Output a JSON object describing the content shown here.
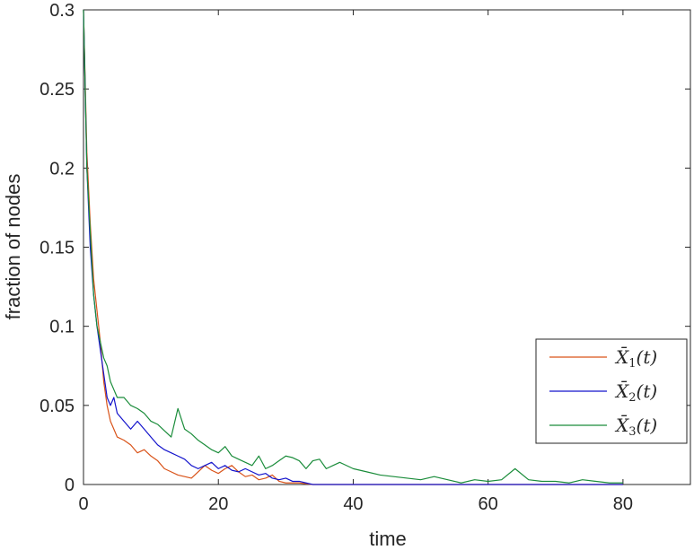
{
  "chart_data": {
    "type": "line",
    "title": "",
    "xlabel": "time",
    "ylabel": "fraction of nodes",
    "xlim": [
      0,
      90
    ],
    "ylim": [
      0,
      0.3
    ],
    "xticks": [
      0,
      20,
      40,
      60,
      80
    ],
    "xtick_labels": [
      "0",
      "20",
      "40",
      "60",
      "80"
    ],
    "yticks": [
      0,
      0.05,
      0.1,
      0.15,
      0.2,
      0.25,
      0.3
    ],
    "ytick_labels": [
      "0",
      "0.05",
      "0.1",
      "0.15",
      "0.2",
      "0.25",
      "0.3"
    ],
    "grid": false,
    "legend_position": "bottom-right",
    "series": [
      {
        "name": "X̄1(t)",
        "color": "#d95319",
        "x": [
          0,
          0.5,
          1,
          1.5,
          2,
          2.5,
          3,
          3.5,
          4,
          4.5,
          5,
          6,
          7,
          8,
          9,
          10,
          11,
          12,
          13,
          14,
          15,
          16,
          17,
          18,
          19,
          20,
          21,
          22,
          23,
          24,
          25,
          26,
          27,
          28,
          29,
          30,
          32,
          34,
          36,
          40,
          50,
          60,
          70,
          80
        ],
        "y": [
          0.3,
          0.21,
          0.165,
          0.13,
          0.11,
          0.09,
          0.065,
          0.05,
          0.04,
          0.035,
          0.03,
          0.028,
          0.025,
          0.02,
          0.022,
          0.018,
          0.015,
          0.01,
          0.008,
          0.006,
          0.005,
          0.004,
          0.008,
          0.012,
          0.009,
          0.007,
          0.01,
          0.012,
          0.008,
          0.005,
          0.006,
          0.003,
          0.004,
          0.006,
          0.002,
          0.001,
          0.001,
          0,
          0,
          0,
          0,
          0,
          0,
          0
        ]
      },
      {
        "name": "X̄2(t)",
        "color": "#1414cc",
        "x": [
          0,
          0.5,
          1,
          1.5,
          2,
          2.5,
          3,
          3.5,
          4,
          4.5,
          5,
          6,
          7,
          8,
          9,
          10,
          11,
          12,
          13,
          14,
          15,
          16,
          17,
          18,
          19,
          20,
          21,
          22,
          23,
          24,
          25,
          26,
          27,
          28,
          29,
          30,
          31,
          32,
          33,
          34,
          36,
          40,
          50,
          60,
          70,
          80
        ],
        "y": [
          0.3,
          0.2,
          0.15,
          0.12,
          0.1,
          0.085,
          0.07,
          0.055,
          0.05,
          0.055,
          0.045,
          0.04,
          0.035,
          0.04,
          0.035,
          0.03,
          0.025,
          0.022,
          0.02,
          0.018,
          0.016,
          0.012,
          0.01,
          0.012,
          0.014,
          0.01,
          0.012,
          0.009,
          0.008,
          0.01,
          0.008,
          0.006,
          0.007,
          0.004,
          0.003,
          0.004,
          0.002,
          0.002,
          0.001,
          0,
          0,
          0,
          0,
          0,
          0,
          0
        ]
      },
      {
        "name": "X̄3(t)",
        "color": "#1a8c3a",
        "x": [
          0,
          0.5,
          1,
          1.5,
          2,
          2.5,
          3,
          3.5,
          4,
          4.5,
          5,
          6,
          7,
          8,
          9,
          10,
          11,
          12,
          13,
          14,
          15,
          16,
          17,
          18,
          19,
          20,
          21,
          22,
          23,
          24,
          25,
          26,
          27,
          28,
          29,
          30,
          31,
          32,
          33,
          34,
          35,
          36,
          37,
          38,
          40,
          42,
          44,
          46,
          48,
          50,
          52,
          54,
          56,
          58,
          60,
          62,
          64,
          66,
          68,
          70,
          72,
          74,
          76,
          78,
          80
        ],
        "y": [
          0.3,
          0.2,
          0.16,
          0.12,
          0.1,
          0.09,
          0.08,
          0.075,
          0.065,
          0.06,
          0.055,
          0.055,
          0.05,
          0.048,
          0.045,
          0.04,
          0.038,
          0.034,
          0.03,
          0.048,
          0.035,
          0.032,
          0.028,
          0.025,
          0.022,
          0.02,
          0.024,
          0.018,
          0.016,
          0.014,
          0.012,
          0.018,
          0.01,
          0.012,
          0.015,
          0.018,
          0.017,
          0.015,
          0.01,
          0.015,
          0.016,
          0.01,
          0.012,
          0.014,
          0.01,
          0.008,
          0.006,
          0.005,
          0.004,
          0.003,
          0.005,
          0.003,
          0.001,
          0.003,
          0.002,
          0.003,
          0.01,
          0.003,
          0.002,
          0.002,
          0.001,
          0.003,
          0.002,
          0.001,
          0.001
        ]
      }
    ]
  }
}
